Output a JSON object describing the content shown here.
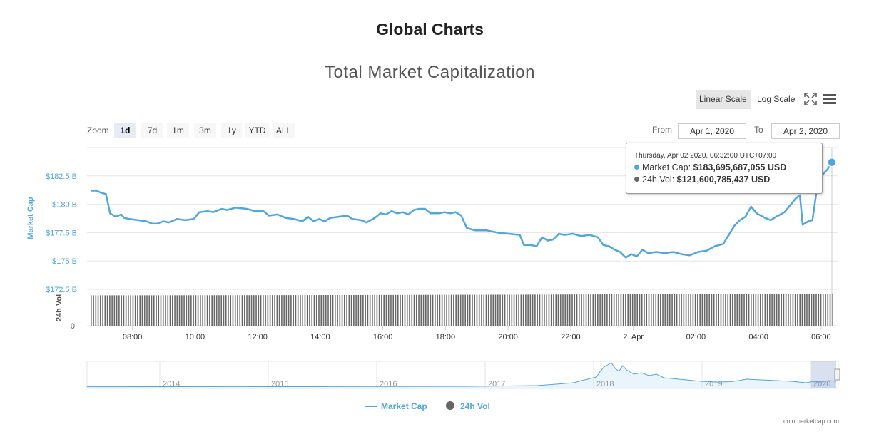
{
  "page": {
    "title": "Global Charts"
  },
  "chart": {
    "title": "Total Market Capitalization"
  },
  "toolbar": {
    "linear_label": "Linear Scale",
    "log_label": "Log Scale",
    "fullscreen_icon": "fullscreen-icon",
    "menu_icon": "hamburger-menu-icon"
  },
  "zoom": {
    "label": "Zoom",
    "buttons": [
      "1d",
      "7d",
      "1m",
      "3m",
      "1y",
      "YTD",
      "ALL"
    ],
    "active": "1d"
  },
  "range": {
    "from_label": "From",
    "from_value": "Apr 1, 2020",
    "to_label": "To",
    "to_value": "Apr 2, 2020"
  },
  "tooltip": {
    "date": "Thursday, Apr 02 2020, 06:32:00 UTC+07:00",
    "market_cap_label": "Market Cap:",
    "market_cap_value": "$183,695,687,055 USD",
    "volume_label": "24h Vol:",
    "volume_value": "$121,600,785,437 USD"
  },
  "credit": "coinmarketcap.com",
  "colors": {
    "market_cap": "#4fa7de",
    "volume": "#666666",
    "axis_text": "#4fa7de"
  },
  "chart_data": {
    "type": "line",
    "title": "Total Market Capitalization",
    "ylabel": "Market Cap",
    "ylabel_volume": "24h Vol",
    "ylim": [
      172.5,
      185
    ],
    "y_ticks": [
      "$182.5 B",
      "$180 B",
      "$177.5 B",
      "$175 B",
      "$172.5 B"
    ],
    "y_tick_values": [
      182.5,
      180,
      177.5,
      175,
      172.5
    ],
    "volume_ticks": [
      "0"
    ],
    "x_ticks": [
      "08:00",
      "10:00",
      "12:00",
      "14:00",
      "16:00",
      "18:00",
      "20:00",
      "22:00",
      "2. Apr",
      "02:00",
      "04:00",
      "06:00"
    ],
    "x_tick_hours": [
      8,
      10,
      12,
      14,
      16,
      18,
      20,
      22,
      24,
      26,
      28,
      30
    ],
    "x_range_hours": [
      6.55,
      30.55
    ],
    "series": [
      {
        "name": "Market Cap",
        "unit": "B USD",
        "points": [
          [
            6.6,
            181.2
          ],
          [
            6.8,
            181.2
          ],
          [
            7.0,
            181.0
          ],
          [
            7.15,
            180.9
          ],
          [
            7.3,
            179.2
          ],
          [
            7.5,
            178.9
          ],
          [
            7.7,
            179.1
          ],
          [
            7.8,
            178.8
          ],
          [
            8.0,
            178.7
          ],
          [
            8.3,
            178.6
          ],
          [
            8.6,
            178.5
          ],
          [
            8.8,
            178.3
          ],
          [
            9.0,
            178.3
          ],
          [
            9.2,
            178.5
          ],
          [
            9.4,
            178.4
          ],
          [
            9.7,
            178.7
          ],
          [
            10.0,
            178.6
          ],
          [
            10.3,
            178.7
          ],
          [
            10.5,
            179.3
          ],
          [
            10.8,
            179.4
          ],
          [
            11.0,
            179.3
          ],
          [
            11.3,
            179.6
          ],
          [
            11.5,
            179.5
          ],
          [
            11.8,
            179.7
          ],
          [
            12.2,
            179.6
          ],
          [
            12.5,
            179.4
          ],
          [
            12.8,
            179.4
          ],
          [
            13.0,
            179.0
          ],
          [
            13.3,
            179.1
          ],
          [
            13.6,
            178.8
          ],
          [
            13.9,
            178.7
          ],
          [
            14.2,
            178.5
          ],
          [
            14.4,
            178.9
          ],
          [
            14.6,
            178.5
          ],
          [
            14.8,
            178.7
          ],
          [
            15.0,
            178.5
          ],
          [
            15.2,
            178.8
          ],
          [
            15.5,
            178.9
          ],
          [
            15.8,
            179.0
          ],
          [
            16.0,
            178.7
          ],
          [
            16.3,
            178.6
          ],
          [
            16.5,
            178.4
          ],
          [
            16.8,
            178.8
          ],
          [
            17.0,
            179.2
          ],
          [
            17.2,
            179.1
          ],
          [
            17.4,
            179.4
          ],
          [
            17.6,
            179.2
          ],
          [
            17.8,
            179.3
          ],
          [
            18.0,
            179.1
          ],
          [
            18.2,
            179.5
          ],
          [
            18.4,
            179.6
          ],
          [
            18.6,
            179.6
          ],
          [
            18.8,
            179.2
          ],
          [
            19.1,
            179.2
          ],
          [
            19.3,
            179.3
          ],
          [
            19.5,
            179.2
          ],
          [
            19.7,
            179.3
          ],
          [
            19.9,
            179.0
          ],
          [
            20.1,
            177.9
          ],
          [
            20.4,
            177.7
          ],
          [
            20.8,
            177.7
          ],
          [
            21.2,
            177.5
          ],
          [
            21.6,
            177.4
          ],
          [
            22.0,
            177.3
          ],
          [
            22.15,
            176.4
          ],
          [
            22.4,
            176.4
          ],
          [
            22.6,
            176.3
          ],
          [
            22.8,
            177.1
          ],
          [
            23.0,
            176.8
          ],
          [
            23.2,
            176.9
          ],
          [
            23.4,
            177.4
          ],
          [
            23.6,
            177.3
          ],
          [
            23.9,
            177.4
          ],
          [
            24.2,
            177.2
          ],
          [
            24.5,
            177.3
          ],
          [
            24.8,
            177.1
          ],
          [
            25.0,
            176.4
          ],
          [
            25.2,
            176.3
          ],
          [
            25.4,
            176.0
          ],
          [
            25.6,
            175.8
          ],
          [
            25.8,
            175.3
          ],
          [
            26.0,
            175.6
          ],
          [
            26.2,
            175.4
          ],
          [
            26.4,
            176.0
          ],
          [
            26.6,
            175.7
          ],
          [
            26.9,
            175.8
          ],
          [
            27.2,
            175.7
          ],
          [
            27.5,
            175.8
          ],
          [
            27.8,
            175.6
          ],
          [
            28.1,
            175.5
          ],
          [
            28.4,
            175.8
          ],
          [
            28.7,
            175.9
          ],
          [
            29.0,
            176.3
          ],
          [
            29.3,
            176.5
          ],
          [
            29.5,
            177.3
          ],
          [
            29.7,
            178.1
          ],
          [
            29.9,
            178.6
          ],
          [
            30.1,
            178.9
          ],
          [
            30.3,
            179.8
          ],
          [
            30.5,
            179.2
          ],
          [
            30.8,
            178.8
          ],
          [
            31.0,
            178.6
          ],
          [
            31.2,
            178.9
          ],
          [
            31.5,
            179.3
          ],
          [
            31.7,
            179.9
          ],
          [
            31.9,
            180.5
          ],
          [
            32.05,
            180.8
          ],
          [
            32.15,
            178.2
          ],
          [
            32.35,
            178.5
          ],
          [
            32.5,
            178.6
          ],
          [
            32.7,
            182.0
          ],
          [
            32.9,
            182.7
          ],
          [
            33.05,
            183.1
          ],
          [
            33.2,
            183.7
          ]
        ]
      },
      {
        "name": "24h Vol",
        "unit": "B USD",
        "ylim": [
          0,
          190
        ],
        "start": 115,
        "end": 121.6
      }
    ],
    "navigator": {
      "x_ticks": [
        "2014",
        "2015",
        "2016",
        "2017",
        "2018",
        "2019",
        "2020"
      ]
    },
    "legend": [
      "Market Cap",
      "24h Vol"
    ],
    "legend_position": "bottom-center",
    "grid": true
  }
}
